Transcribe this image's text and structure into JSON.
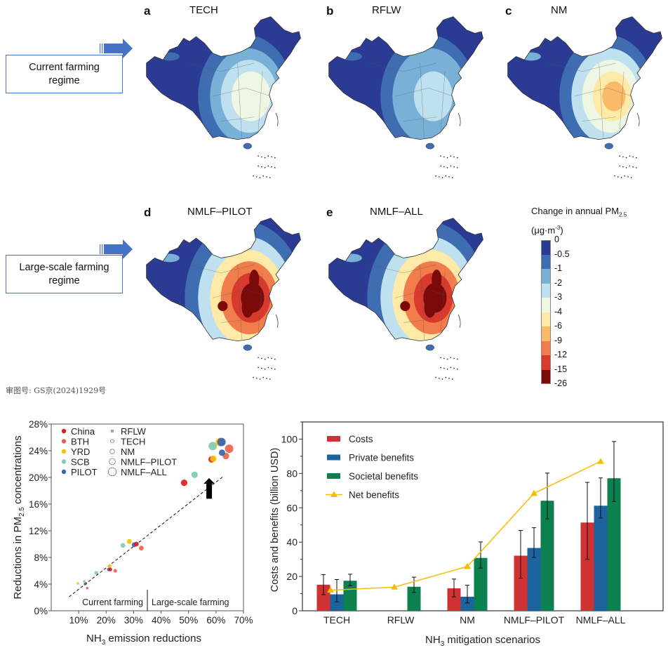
{
  "maps": [
    {
      "letter": "a",
      "title": "TECH",
      "scheme": "tech"
    },
    {
      "letter": "b",
      "title": "RFLW",
      "scheme": "rflw"
    },
    {
      "letter": "c",
      "title": "NM",
      "scheme": "nm"
    },
    {
      "letter": "d",
      "title": "NMLF–PILOT",
      "scheme": "pilot"
    },
    {
      "letter": "e",
      "title": "NMLF–ALL",
      "scheme": "all"
    }
  ],
  "regimes": {
    "current": "Current farming regime",
    "large_scale": "Large-scale farming regime"
  },
  "colorbar": {
    "title_line1": "Change in annual PM",
    "title_sub": "2.5",
    "title_line2": "(μg·m",
    "title_sup": "-3",
    "title_close": ")",
    "ticks": [
      "0",
      "-0.5",
      "-1",
      "-2",
      "-3",
      "-4",
      "-6",
      "-9",
      "-12",
      "-15",
      "-26"
    ],
    "colors": [
      "#2b3a93",
      "#3f6db2",
      "#78b0d6",
      "#bfe0ee",
      "#eef6e4",
      "#fdeaa6",
      "#fbb96a",
      "#f17d4c",
      "#d93a2e",
      "#7b0a0a"
    ]
  },
  "approval_number": "审图号: GS京(2024)1929号",
  "chart_data": [
    {
      "type": "scatter",
      "title": "",
      "xlabel": "NH3 emission reductions",
      "xlabel_main": "NH",
      "xlabel_sub": "3",
      "xlabel_rest": " emission reductions",
      "ylabel_main": "Reductions in PM",
      "ylabel_sub": "2.5",
      "ylabel_rest": " concentrations",
      "xlim": [
        0,
        70
      ],
      "ylim": [
        0,
        28
      ],
      "xticks": [
        "10%",
        "20%",
        "30%",
        "40%",
        "50%",
        "60%",
        "70%"
      ],
      "xtick_values": [
        10,
        20,
        30,
        40,
        50,
        60,
        70
      ],
      "yticks": [
        "0%",
        "4%",
        "8%",
        "12%",
        "16%",
        "20%",
        "24%",
        "28%"
      ],
      "ytick_values": [
        0,
        4,
        8,
        12,
        16,
        20,
        24,
        28
      ],
      "region_legend": [
        {
          "name": "China",
          "color": "#e31a1c"
        },
        {
          "name": "BTH",
          "color": "#f0624d"
        },
        {
          "name": "YRD",
          "color": "#f5c100"
        },
        {
          "name": "SCB",
          "color": "#7fcdaa"
        },
        {
          "name": "PILOT",
          "color": "#3a64b0"
        }
      ],
      "scenario_legend": [
        "RFLW",
        "TECH",
        "NM",
        "NMLF–PILOT",
        "NMLF–ALL"
      ],
      "scenario_size_rank": {
        "RFLW": 1,
        "TECH": 2,
        "NM": 3,
        "NMLF–PILOT": 4,
        "NMLF–ALL": 5
      },
      "points": [
        {
          "region": "YRD",
          "scenario": "RFLW",
          "x": 9.7,
          "y": 4.1
        },
        {
          "region": "SCB",
          "scenario": "RFLW",
          "x": 12.0,
          "y": 4.4
        },
        {
          "region": "China",
          "scenario": "RFLW",
          "x": 12.6,
          "y": 4.1
        },
        {
          "region": "BTH",
          "scenario": "RFLW",
          "x": 13.1,
          "y": 3.4
        },
        {
          "region": "PILOT",
          "scenario": "RFLW",
          "x": 12.3,
          "y": 4.0
        },
        {
          "region": "SCB",
          "scenario": "TECH",
          "x": 16.4,
          "y": 5.7
        },
        {
          "region": "YRD",
          "scenario": "TECH",
          "x": 21.3,
          "y": 6.7
        },
        {
          "region": "PILOT",
          "scenario": "TECH",
          "x": 21.0,
          "y": 6.2
        },
        {
          "region": "China",
          "scenario": "TECH",
          "x": 21.5,
          "y": 6.2
        },
        {
          "region": "BTH",
          "scenario": "TECH",
          "x": 23.3,
          "y": 6.0
        },
        {
          "region": "SCB",
          "scenario": "NM",
          "x": 26.1,
          "y": 9.8
        },
        {
          "region": "YRD",
          "scenario": "NM",
          "x": 28.4,
          "y": 10.4
        },
        {
          "region": "PILOT",
          "scenario": "NM",
          "x": 30.2,
          "y": 9.9
        },
        {
          "region": "China",
          "scenario": "NM",
          "x": 31.0,
          "y": 10.0
        },
        {
          "region": "BTH",
          "scenario": "NM",
          "x": 32.8,
          "y": 9.4
        },
        {
          "region": "China",
          "scenario": "NMLF–PILOT",
          "x": 48.4,
          "y": 19.2
        },
        {
          "region": "SCB",
          "scenario": "NMLF–PILOT",
          "x": 52.2,
          "y": 20.4
        },
        {
          "region": "China",
          "scenario": "NMLF–PILOT",
          "x": 58.4,
          "y": 22.7
        },
        {
          "region": "YRD",
          "scenario": "NMLF–PILOT",
          "x": 59.0,
          "y": 22.8
        },
        {
          "region": "BTH",
          "scenario": "NMLF–PILOT",
          "x": 63.6,
          "y": 23.2
        },
        {
          "region": "PILOT",
          "scenario": "NMLF–PILOT",
          "x": 62.2,
          "y": 23.7
        },
        {
          "region": "SCB",
          "scenario": "NMLF–ALL",
          "x": 58.8,
          "y": 24.7
        },
        {
          "region": "YRD",
          "scenario": "NMLF–ALL",
          "x": 61.4,
          "y": 25.3
        },
        {
          "region": "PILOT",
          "scenario": "NMLF–ALL",
          "x": 62.0,
          "y": 25.3
        },
        {
          "region": "BTH",
          "scenario": "NMLF–ALL",
          "x": 64.8,
          "y": 24.3
        }
      ],
      "fit_line": {
        "x": [
          6.5,
          62.5
        ],
        "y": [
          2.1,
          20.1
        ]
      },
      "divider_x": 35,
      "annotations": [
        "Current farming",
        "Large-scale farming"
      ],
      "arrow": {
        "x": 57.5,
        "y_from": 16.8,
        "y_to": 19.9
      }
    },
    {
      "type": "bar",
      "title": "",
      "xlabel_main": "NH",
      "xlabel_sub": "3",
      "xlabel_rest": " mitigation scenarios",
      "ylabel": "Costs and benefits (billion USD)",
      "ylim": [
        0,
        110
      ],
      "yticks": [
        0,
        20,
        40,
        60,
        80,
        100
      ],
      "categories": [
        "TECH",
        "RFLW",
        "NM",
        "NMLF–PILOT",
        "NMLF–ALL"
      ],
      "series": [
        {
          "name": "Costs",
          "color": "#d03133",
          "values": [
            15.2,
            null,
            13.1,
            32.1,
            51.4
          ],
          "err_low": [
            9.4,
            null,
            8.1,
            19.0,
            30.0
          ],
          "err_high": [
            21.1,
            null,
            18.5,
            46.8,
            74.8
          ]
        },
        {
          "name": "Private benefits",
          "color": "#1d649e",
          "values": [
            9.6,
            null,
            8.2,
            36.6,
            61.2
          ],
          "err_low": [
            5.2,
            null,
            4.6,
            31.1,
            54.0
          ],
          "err_high": [
            18.2,
            null,
            14.9,
            48.4,
            77.4
          ]
        },
        {
          "name": "Societal benefits",
          "color": "#0d8050",
          "values": [
            17.5,
            14.0,
            30.8,
            64.1,
            77.2
          ],
          "err_low": [
            14.6,
            10.7,
            24.9,
            53.5,
            63.6
          ],
          "err_high": [
            21.3,
            19.6,
            40.1,
            80.2,
            98.6
          ]
        }
      ],
      "line_series": {
        "name": "Net benefits",
        "color": "#f4bd00",
        "values": [
          12.0,
          13.8,
          25.8,
          68.4,
          87.0
        ]
      }
    }
  ]
}
